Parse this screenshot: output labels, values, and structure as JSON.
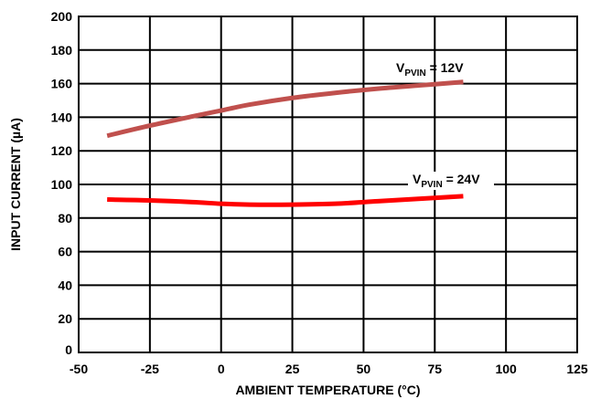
{
  "chart_data": {
    "type": "line",
    "xlabel": "AMBIENT TEMPERATURE (°C)",
    "ylabel": "INPUT CURRENT (µA)",
    "xlim": [
      -50,
      125
    ],
    "ylim": [
      0,
      200
    ],
    "x_ticks": [
      "-50",
      "-25",
      "0",
      "25",
      "50",
      "75",
      "100",
      "125"
    ],
    "y_ticks": [
      "0",
      "20",
      "40",
      "60",
      "80",
      "100",
      "120",
      "140",
      "160",
      "180",
      "200"
    ],
    "grid": true,
    "series": [
      {
        "name_main": "V",
        "name_sub": "PVIN",
        "name_rest": " = 12V",
        "color": "#c0504d",
        "x": [
          -40,
          -25,
          -10,
          0,
          10,
          25,
          40,
          55,
          70,
          85
        ],
        "y": [
          129,
          135,
          140.5,
          144,
          147.5,
          151.5,
          154.5,
          157,
          159,
          161
        ]
      },
      {
        "name_main": "V",
        "name_sub": "PVIN",
        "name_rest": " = 24V",
        "color": "#ff0000",
        "x": [
          -40,
          -25,
          -10,
          0,
          10,
          25,
          40,
          55,
          70,
          85
        ],
        "y": [
          91,
          90.5,
          89.5,
          88.5,
          88,
          88,
          88.5,
          90,
          91.5,
          93
        ]
      }
    ]
  }
}
